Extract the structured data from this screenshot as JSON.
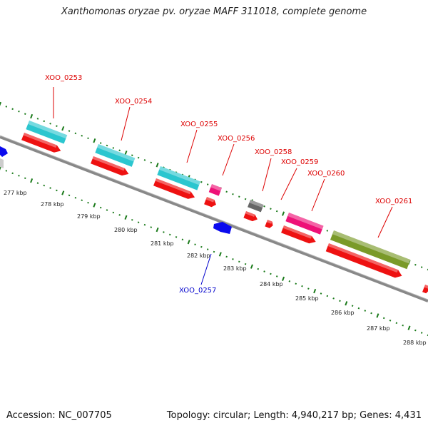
{
  "header": {
    "title": "Xanthomonas oryzae pv. oryzae MAFF 311018, complete genome"
  },
  "footer": {
    "accession": "Accession: NC_007705",
    "summary": "Topology: circular; Length: 4,940,217 bp; Genes: 4,431"
  },
  "scale": {
    "ticks": [
      "277 kbp",
      "278 kbp",
      "279 kbp",
      "280 kbp",
      "281 kbp",
      "282 kbp",
      "283 kbp",
      "284 kbp",
      "285 kbp",
      "286 kbp",
      "287 kbp",
      "288 kbp"
    ]
  },
  "genes": {
    "labels": [
      "XOO_0253",
      "XOO_0254",
      "XOO_0255",
      "XOO_0256",
      "XOO_0258",
      "XOO_0259",
      "XOO_0260",
      "XOO_0261",
      "XOO_0257"
    ]
  },
  "colors": {
    "label_forward": "#dd0000",
    "label_reverse": "#0000cc",
    "backbone": "#888888",
    "ticks": "#1a7a1a"
  }
}
